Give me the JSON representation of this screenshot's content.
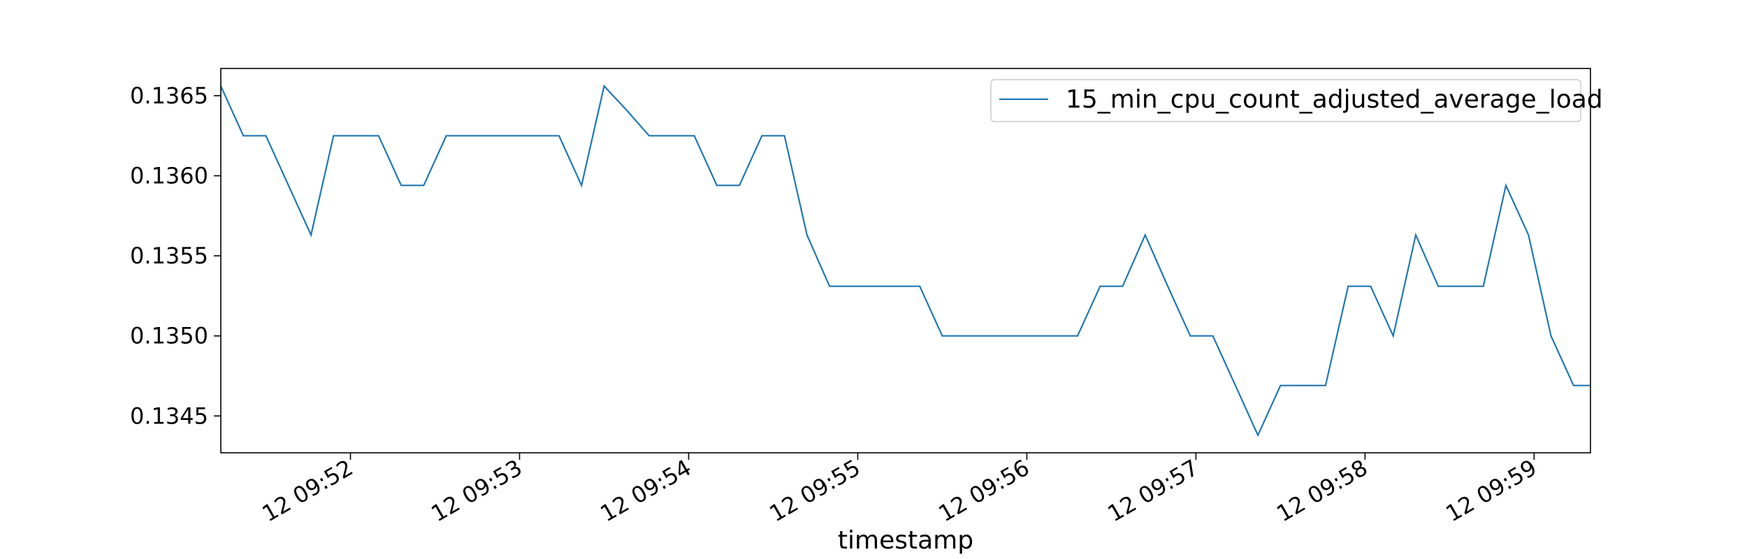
{
  "chart_data": {
    "type": "line",
    "title": "",
    "xlabel": "timestamp",
    "ylabel": "",
    "x_tick_labels": [
      "12 09:52",
      "12 09:53",
      "12 09:54",
      "12 09:55",
      "12 09:56",
      "12 09:57",
      "12 09:58",
      "12 09:59"
    ],
    "y_tick_labels": [
      "0.1345",
      "0.1350",
      "0.1355",
      "0.1360",
      "0.1365"
    ],
    "y_ticks": [
      0.1345,
      0.135,
      0.1355,
      0.136,
      0.1365
    ],
    "xlim": [
      "09:51:14",
      "09:59:20"
    ],
    "ylim": [
      0.13427,
      0.13667
    ],
    "grid": false,
    "legend_position": "top-right",
    "series": [
      {
        "name": "15_min_cpu_count_adjusted_average_load",
        "color": "#1f77b4",
        "x": [
          "09:51:14",
          "09:51:22",
          "09:51:30",
          "09:51:38",
          "09:51:46",
          "09:51:54",
          "09:52:02",
          "09:52:10",
          "09:52:18",
          "09:52:26",
          "09:52:34",
          "09:52:42",
          "09:52:50",
          "09:52:58",
          "09:53:06",
          "09:53:14",
          "09:53:22",
          "09:53:30",
          "09:53:38",
          "09:53:46",
          "09:53:54",
          "09:54:02",
          "09:54:10",
          "09:54:18",
          "09:54:26",
          "09:54:34",
          "09:54:42",
          "09:54:50",
          "09:54:58",
          "09:55:06",
          "09:55:14",
          "09:55:22",
          "09:55:30",
          "09:55:38",
          "09:55:46",
          "09:55:54",
          "09:56:02",
          "09:56:10",
          "09:56:18",
          "09:56:26",
          "09:56:34",
          "09:56:42",
          "09:56:50",
          "09:56:58",
          "09:57:06",
          "09:57:14",
          "09:57:22",
          "09:57:30",
          "09:57:38",
          "09:57:46",
          "09:57:54",
          "09:58:02",
          "09:58:10",
          "09:58:18",
          "09:58:26",
          "09:58:34",
          "09:58:42",
          "09:58:50",
          "09:58:58",
          "09:59:06",
          "09:59:14",
          "09:59:20"
        ],
        "values": [
          0.13656,
          0.13625,
          0.13625,
          0.13594,
          0.13563,
          0.13625,
          0.13625,
          0.13625,
          0.13594,
          0.13594,
          0.13625,
          0.13625,
          0.13625,
          0.13625,
          0.13625,
          0.13625,
          0.13594,
          0.13656,
          0.13641,
          0.13625,
          0.13625,
          0.13625,
          0.13594,
          0.13594,
          0.13625,
          0.13625,
          0.13563,
          0.13531,
          0.13531,
          0.13531,
          0.13531,
          0.13531,
          0.135,
          0.135,
          0.135,
          0.135,
          0.135,
          0.135,
          0.135,
          0.13531,
          0.13531,
          0.13563,
          0.13531,
          0.135,
          0.135,
          0.13469,
          0.13438,
          0.13469,
          0.13469,
          0.13469,
          0.13531,
          0.13531,
          0.135,
          0.13563,
          0.13531,
          0.13531,
          0.13531,
          0.13594,
          0.13563,
          0.135,
          0.13469,
          0.13469
        ]
      }
    ]
  }
}
